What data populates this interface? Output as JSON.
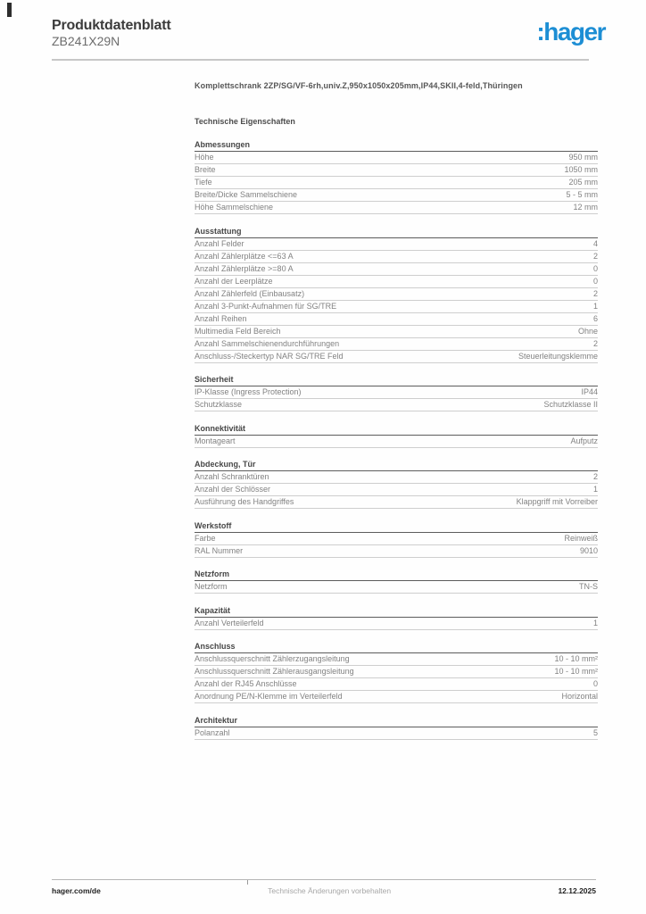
{
  "header": {
    "title": "Produktdatenblatt",
    "product_id": "ZB241X29N",
    "logo_text": ":hager",
    "logo_color": "#1d8ed4"
  },
  "product": {
    "description": "Komplettschrank 2ZP/SG/VF-6rh,univ.Z,950x1050x205mm,IP44,SKII,4-feld,Thüringen",
    "spec_heading": "Technische Eigenschaften"
  },
  "sections": [
    {
      "title": "Abmessungen",
      "rows": [
        {
          "label": "Höhe",
          "value": "950 mm"
        },
        {
          "label": "Breite",
          "value": "1050 mm"
        },
        {
          "label": "Tiefe",
          "value": "205 mm"
        },
        {
          "label": "Breite/Dicke Sammelschiene",
          "value": "5 - 5 mm"
        },
        {
          "label": "Höhe Sammelschiene",
          "value": "12 mm"
        }
      ]
    },
    {
      "title": "Ausstattung",
      "rows": [
        {
          "label": "Anzahl Felder",
          "value": "4"
        },
        {
          "label": "Anzahl Zählerplätze <=63 A",
          "value": "2"
        },
        {
          "label": "Anzahl Zählerplätze >=80 A",
          "value": "0"
        },
        {
          "label": "Anzahl der Leerplätze",
          "value": "0"
        },
        {
          "label": "Anzahl Zählerfeld (Einbausatz)",
          "value": "2"
        },
        {
          "label": "Anzahl 3-Punkt-Aufnahmen für SG/TRE",
          "value": "1"
        },
        {
          "label": "Anzahl Reihen",
          "value": "6"
        },
        {
          "label": "Multimedia Feld Bereich",
          "value": "Ohne"
        },
        {
          "label": "Anzahl Sammelschienendurchführungen",
          "value": "2"
        },
        {
          "label": "Anschluss-/Steckertyp NAR SG/TRE Feld",
          "value": "Steuerleitungsklemme"
        }
      ]
    },
    {
      "title": "Sicherheit",
      "rows": [
        {
          "label": "IP-Klasse (Ingress Protection)",
          "value": "IP44"
        },
        {
          "label": "Schutzklasse",
          "value": "Schutzklasse II"
        }
      ]
    },
    {
      "title": "Konnektivität",
      "rows": [
        {
          "label": "Montageart",
          "value": "Aufputz"
        }
      ]
    },
    {
      "title": "Abdeckung, Tür",
      "rows": [
        {
          "label": "Anzahl Schranktüren",
          "value": "2"
        },
        {
          "label": "Anzahl der Schlösser",
          "value": "1"
        },
        {
          "label": "Ausführung des Handgriffes",
          "value": "Klappgriff mit Vorreiber"
        }
      ]
    },
    {
      "title": "Werkstoff",
      "rows": [
        {
          "label": "Farbe",
          "value": "Reinweiß"
        },
        {
          "label": "RAL Nummer",
          "value": "9010"
        }
      ]
    },
    {
      "title": "Netzform",
      "rows": [
        {
          "label": "Netzform",
          "value": "TN-S"
        }
      ]
    },
    {
      "title": "Kapazität",
      "rows": [
        {
          "label": "Anzahl Verteilerfeld",
          "value": "1"
        }
      ]
    },
    {
      "title": "Anschluss",
      "rows": [
        {
          "label": "Anschlussquerschnitt Zählerzugangsleitung",
          "value": "10 - 10 mm²"
        },
        {
          "label": "Anschlussquerschnitt Zählerausgangsleitung",
          "value": "10 - 10 mm²"
        },
        {
          "label": "Anzahl der RJ45 Anschlüsse",
          "value": "0"
        },
        {
          "label": "Anordnung PE/N-Klemme im Verteilerfeld",
          "value": "Horizontal"
        }
      ]
    },
    {
      "title": "Architektur",
      "rows": [
        {
          "label": "Polanzahl",
          "value": "5"
        }
      ]
    }
  ],
  "footer": {
    "url": "hager.com/de",
    "note": "Technische Änderungen vorbehalten",
    "date": "12.12.2025"
  }
}
